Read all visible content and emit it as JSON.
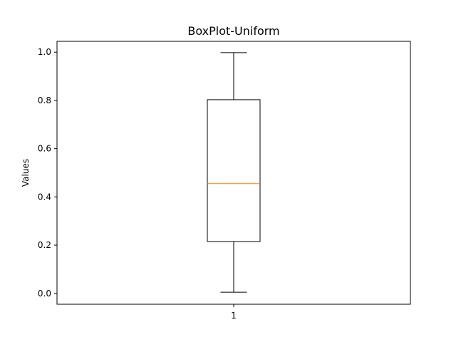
{
  "chart_data": {
    "type": "boxplot",
    "title": "BoxPlot-Uniform",
    "xlabel": "",
    "ylabel": "Values",
    "categories": [
      "1"
    ],
    "boxes": [
      {
        "category": "1",
        "whisker_low": 0.005,
        "q1": 0.215,
        "median": 0.455,
        "q3": 0.803,
        "whisker_high": 0.998
      }
    ],
    "ylim": [
      -0.045,
      1.045
    ],
    "yticks": [
      "0.0",
      "0.2",
      "0.4",
      "0.6",
      "0.8",
      "1.0"
    ],
    "grid": false,
    "colors": {
      "box": "#000000",
      "median": "#ff7f0e",
      "whisker": "#000000"
    }
  }
}
